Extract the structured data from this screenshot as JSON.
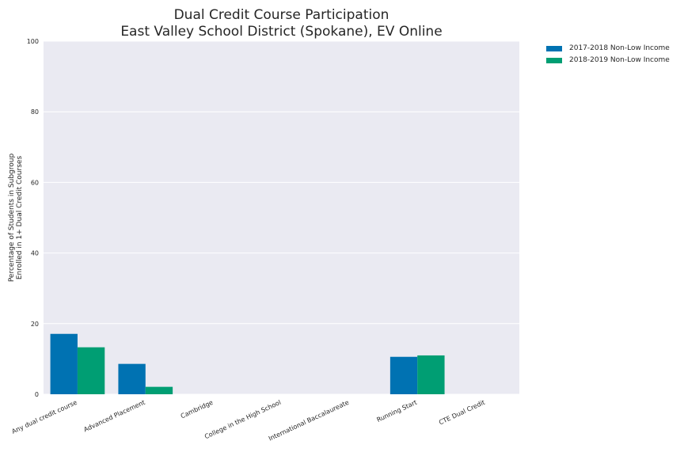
{
  "chart_data": {
    "type": "bar",
    "title": "Dual Credit Course Participation",
    "subtitle": "East Valley School District (Spokane), EV Online",
    "ylabel_line1": "Percentage of Students in Subgroup",
    "ylabel_line2": "Enrolled in 1+ Dual Credit Courses",
    "xlabel": "",
    "ylim": [
      0,
      100
    ],
    "yticks": [
      0,
      20,
      40,
      60,
      80,
      100
    ],
    "grid": true,
    "legend_position": "outside-top-right",
    "categories": [
      "Any dual credit course",
      "Advanced Placement",
      "Cambridge",
      "College in the High School",
      "International Baccalaureate",
      "Running Start",
      "CTE Dual Credit"
    ],
    "series": [
      {
        "name": "2017-2018 Non-Low Income",
        "color": "#0072b2",
        "values": [
          17.1,
          8.6,
          0,
          0,
          0,
          10.6,
          0
        ]
      },
      {
        "name": "2018-2019 Non-Low Income",
        "color": "#009e73",
        "values": [
          13.3,
          2.1,
          0,
          0,
          0,
          11.0,
          0
        ]
      }
    ]
  },
  "colors": {
    "plot_background": "#eaeaf2",
    "grid": "#ffffff",
    "text": "#262626"
  }
}
